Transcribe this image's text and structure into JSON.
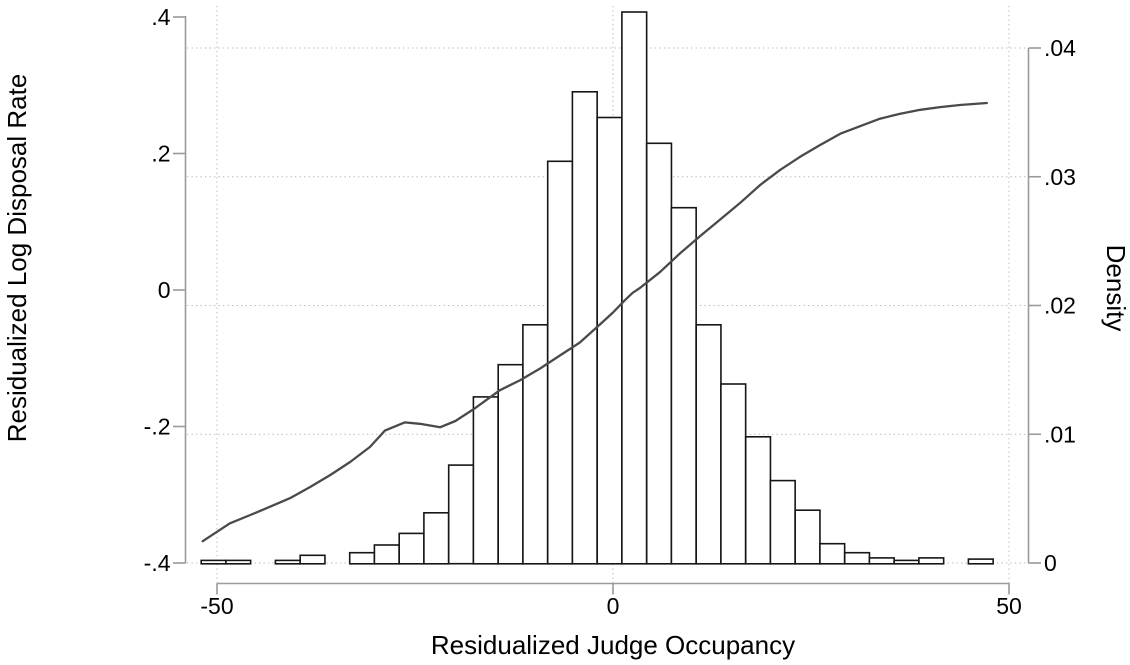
{
  "chart_data": {
    "type": "bar+line",
    "title": "",
    "xlabel": "Residualized Judge Occupancy",
    "ylabel_left": "Residualized Log Disposal Rate",
    "ylabel_right": "Density",
    "x_axis": {
      "range": [
        -50,
        50
      ],
      "ticks": [
        {
          "value": -50,
          "label": "-50"
        },
        {
          "value": 0,
          "label": "0"
        },
        {
          "value": 50,
          "label": "50"
        }
      ]
    },
    "left_y_axis": {
      "range": [
        -0.4,
        0.4
      ],
      "ticks": [
        {
          "value": 0.4,
          "label": ".4"
        },
        {
          "value": 0.2,
          "label": ".2"
        },
        {
          "value": 0,
          "label": "0"
        },
        {
          "value": -0.2,
          "label": "-.2"
        },
        {
          "value": -0.4,
          "label": "-.4"
        }
      ]
    },
    "right_y_axis": {
      "range": [
        0,
        0.04
      ],
      "ticks": [
        {
          "value": 0.04,
          "label": ".04"
        },
        {
          "value": 0.03,
          "label": ".03"
        },
        {
          "value": 0.02,
          "label": ".02"
        },
        {
          "value": 0.01,
          "label": ".01"
        },
        {
          "value": 0,
          "label": "0"
        }
      ]
    },
    "grid": {
      "style": "dotted",
      "horizontal_at_right_ticks": true,
      "vertical_at_x_ticks": true
    },
    "histogram": {
      "axis": "right",
      "bin_start": -52.0,
      "bin_width": 3.125,
      "densities": [
        0.0002,
        0.0002,
        0,
        0.0002,
        0.0006,
        0,
        0.0008,
        0.0014,
        0.0023,
        0.0039,
        0.0076,
        0.0129,
        0.0154,
        0.0185,
        0.0312,
        0.0366,
        0.0346,
        0.0428,
        0.0326,
        0.0276,
        0.0185,
        0.0139,
        0.0098,
        0.0064,
        0.0041,
        0.0015,
        0.0008,
        0.0004,
        0.0002,
        0.0004,
        0,
        0.0003
      ]
    },
    "fit_line": {
      "axis": "left",
      "points": [
        [
          -51.8,
          -0.368
        ],
        [
          -48.4,
          -0.342
        ],
        [
          -44.6,
          -0.324
        ],
        [
          -40.8,
          -0.305
        ],
        [
          -38.3,
          -0.289
        ],
        [
          -35.7,
          -0.271
        ],
        [
          -33.2,
          -0.252
        ],
        [
          -30.7,
          -0.23
        ],
        [
          -28.8,
          -0.206
        ],
        [
          -26.3,
          -0.194
        ],
        [
          -24.4,
          -0.196
        ],
        [
          -21.8,
          -0.201
        ],
        [
          -19.9,
          -0.192
        ],
        [
          -17.4,
          -0.173
        ],
        [
          -14.3,
          -0.147
        ],
        [
          -11.7,
          -0.132
        ],
        [
          -9.2,
          -0.115
        ],
        [
          -6.7,
          -0.096
        ],
        [
          -4.2,
          -0.077
        ],
        [
          -1.6,
          -0.05
        ],
        [
          0,
          -0.033
        ],
        [
          1.5,
          -0.015
        ],
        [
          2.5,
          -0.004
        ],
        [
          3.4,
          0.003
        ],
        [
          5.9,
          0.026
        ],
        [
          8.5,
          0.054
        ],
        [
          11,
          0.079
        ],
        [
          13.5,
          0.103
        ],
        [
          16,
          0.127
        ],
        [
          18.6,
          0.154
        ],
        [
          21.1,
          0.176
        ],
        [
          23.6,
          0.195
        ],
        [
          26.1,
          0.212
        ],
        [
          28.7,
          0.229
        ],
        [
          31.2,
          0.24
        ],
        [
          33.7,
          0.251
        ],
        [
          36.2,
          0.258
        ],
        [
          38.8,
          0.264
        ],
        [
          41.3,
          0.268
        ],
        [
          43.8,
          0.271
        ],
        [
          47.2,
          0.274
        ]
      ]
    },
    "colors": {
      "background": "#ffffff",
      "bar_fill": "#ffffff",
      "bar_stroke": "#161616",
      "fit_line": "#4a4a4a",
      "axis": "#9a9a9a",
      "grid": "#b5b5b5",
      "text": "#000000"
    }
  }
}
